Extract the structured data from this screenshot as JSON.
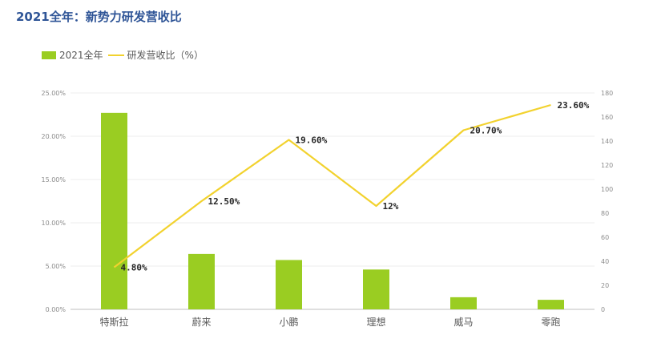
{
  "title": "2021全年：新势力研发营收比",
  "colors": {
    "bar": "#9ACD22",
    "line": "#F2D22E",
    "title": "#2F5597"
  },
  "chart_data": {
    "type": "bar",
    "categories": [
      "特斯拉",
      "蔚来",
      "小鹏",
      "理想",
      "威马",
      "零跑"
    ],
    "series": [
      {
        "name": "2021全年",
        "type": "bar",
        "axis": "left",
        "values": [
          0.227,
          0.064,
          0.057,
          0.046,
          0.014,
          0.011
        ]
      },
      {
        "name": "研发营收比（%）",
        "type": "line",
        "axis": "right",
        "values": [
          35,
          90,
          141,
          86,
          149,
          170
        ],
        "labels": [
          "4.80%",
          "12.50%",
          "19.60%",
          "12%",
          "20.70%",
          "23.60%"
        ]
      }
    ],
    "left_axis": {
      "range": [
        0,
        0.25
      ],
      "ticks": [
        0,
        0.05,
        0.1,
        0.15,
        0.2,
        0.25
      ],
      "tick_labels": [
        "0.00%",
        "5.00%",
        "10.00%",
        "15.00%",
        "20.00%",
        "25.00%"
      ]
    },
    "right_axis": {
      "range": [
        0,
        180
      ],
      "ticks": [
        0,
        20,
        40,
        60,
        80,
        100,
        120,
        140,
        160,
        180
      ],
      "tick_labels": [
        "0",
        "20",
        "40",
        "60",
        "80",
        "100",
        "120",
        "140",
        "160",
        "180"
      ]
    },
    "legend": "top-left",
    "grid": true
  }
}
